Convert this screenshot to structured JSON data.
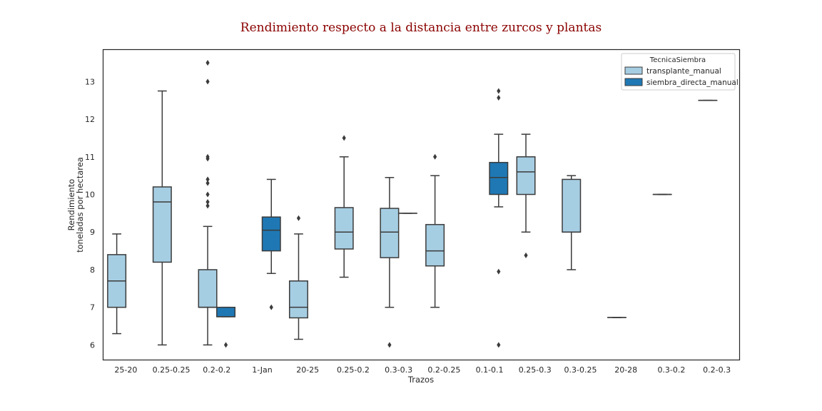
{
  "chart_data": {
    "type": "boxplot",
    "title": "Rendimiento respecto a la distancia entre zurcos y plantas",
    "xlabel": "Trazos",
    "ylabel": [
      "Rendimiento",
      "toneladas por hectarea"
    ],
    "ylim": [
      5.6,
      13.85
    ],
    "yticks": [
      6,
      7,
      8,
      9,
      10,
      11,
      12,
      13
    ],
    "grid": false,
    "legend": {
      "title": "TecnicaSiembra",
      "placement": "top-right",
      "entries": [
        {
          "name": "transplante_manual",
          "color": "#a6cee3"
        },
        {
          "name": "siembra_directa_manual",
          "color": "#1f78b4"
        }
      ]
    },
    "categories": [
      "25-20",
      "0.25-0.25",
      "0.2-0.2",
      "1-Jan",
      "20-25",
      "0.25-0.2",
      "0.3-0.3",
      "0.2-0.25",
      "0.1-0.1",
      "0.25-0.3",
      "0.3-0.25",
      "20-28",
      "0.3-0.2",
      "0.2-0.3"
    ],
    "boxes": [
      {
        "category": "25-20",
        "series": "transplante_manual",
        "whislo": 6.3,
        "q1": 7.0,
        "med": 7.7,
        "q3": 8.4,
        "whishi": 8.95,
        "fliers": []
      },
      {
        "category": "0.25-0.25",
        "series": "transplante_manual",
        "whislo": 6.0,
        "q1": 8.2,
        "med": 9.8,
        "q3": 10.2,
        "whishi": 12.75,
        "fliers": []
      },
      {
        "category": "0.2-0.2",
        "series": "transplante_manual",
        "whislo": 6.0,
        "q1": 7.0,
        "med": 7.0,
        "q3": 8.0,
        "whishi": 9.15,
        "fliers": [
          9.7,
          9.8,
          10.0,
          10.3,
          10.4,
          10.95,
          11.0,
          13.0,
          13.5
        ]
      },
      {
        "category": "0.2-0.2",
        "series": "siembra_directa_manual",
        "whislo": 6.75,
        "q1": 6.75,
        "med": 6.75,
        "q3": 7.0,
        "whishi": 7.0,
        "fliers": [
          6.0
        ]
      },
      {
        "category": "1-Jan",
        "series": "siembra_directa_manual",
        "whislo": 7.9,
        "q1": 8.5,
        "med": 9.05,
        "q3": 9.4,
        "whishi": 10.4,
        "fliers": [
          7.0
        ]
      },
      {
        "category": "20-25",
        "series": "transplante_manual",
        "whislo": 6.15,
        "q1": 6.72,
        "med": 7.0,
        "q3": 7.7,
        "whishi": 8.95,
        "fliers": [
          9.37
        ]
      },
      {
        "category": "0.25-0.2",
        "series": "transplante_manual",
        "whislo": 7.8,
        "q1": 8.55,
        "med": 9.0,
        "q3": 9.65,
        "whishi": 11.0,
        "fliers": [
          11.5
        ]
      },
      {
        "category": "0.3-0.3",
        "series": "transplante_manual",
        "whislo": 7.0,
        "q1": 8.32,
        "med": 9.0,
        "q3": 9.63,
        "whishi": 10.45,
        "fliers": [
          6.0
        ]
      },
      {
        "category": "0.3-0.3",
        "series": "siembra_directa_manual",
        "whislo": 9.5,
        "q1": 9.5,
        "med": 9.5,
        "q3": 9.5,
        "whishi": 9.5,
        "fliers": []
      },
      {
        "category": "0.2-0.25",
        "series": "transplante_manual",
        "whislo": 7.0,
        "q1": 8.1,
        "med": 8.5,
        "q3": 9.2,
        "whishi": 10.5,
        "fliers": [
          11.0
        ]
      },
      {
        "category": "0.1-0.1",
        "series": "siembra_directa_manual",
        "whislo": 9.67,
        "q1": 10.0,
        "med": 10.45,
        "q3": 10.85,
        "whishi": 11.6,
        "fliers": [
          6.0,
          7.95,
          12.57,
          12.75
        ]
      },
      {
        "category": "0.25-0.3",
        "series": "transplante_manual",
        "whislo": 9.0,
        "q1": 10.0,
        "med": 10.6,
        "q3": 11.0,
        "whishi": 11.6,
        "fliers": [
          8.38
        ]
      },
      {
        "category": "0.3-0.25",
        "series": "transplante_manual",
        "whislo": 8.0,
        "q1": 9.0,
        "med": 9.0,
        "q3": 10.4,
        "whishi": 10.5,
        "fliers": []
      },
      {
        "category": "20-28",
        "series": "transplante_manual",
        "whislo": 6.73,
        "q1": 6.73,
        "med": 6.73,
        "q3": 6.73,
        "whishi": 6.73,
        "fliers": []
      },
      {
        "category": "0.3-0.2",
        "series": "transplante_manual",
        "whislo": 10.0,
        "q1": 10.0,
        "med": 10.0,
        "q3": 10.0,
        "whishi": 10.0,
        "fliers": []
      },
      {
        "category": "0.2-0.3",
        "series": "transplante_manual",
        "whislo": 12.5,
        "q1": 12.5,
        "med": 12.5,
        "q3": 12.5,
        "whishi": 12.5,
        "fliers": []
      }
    ]
  }
}
